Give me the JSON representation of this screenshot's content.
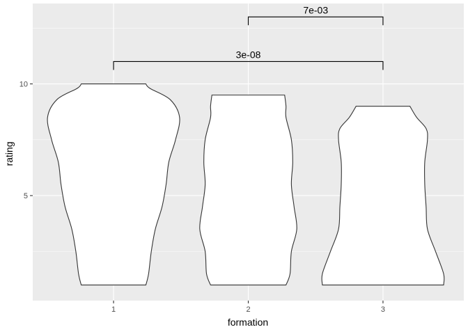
{
  "chart_data": {
    "type": "violin",
    "xlabel": "formation",
    "ylabel": "rating",
    "categories": [
      "1",
      "2",
      "3"
    ],
    "ylim": [
      0.3,
      13.6
    ],
    "y_ticks": [
      5,
      10
    ],
    "y_tick_labels": [
      "5",
      "10"
    ],
    "grid": true,
    "legend": "none",
    "violins": [
      {
        "category": "1",
        "profile": [
          [
            1.0,
            0.24
          ],
          [
            1.5,
            0.26
          ],
          [
            2.5,
            0.28
          ],
          [
            3.5,
            0.31
          ],
          [
            4.5,
            0.36
          ],
          [
            5.5,
            0.39
          ],
          [
            6.5,
            0.41
          ],
          [
            7.5,
            0.46
          ],
          [
            8.5,
            0.49
          ],
          [
            9.3,
            0.42
          ],
          [
            9.8,
            0.27
          ],
          [
            10.0,
            0.24
          ]
        ]
      },
      {
        "category": "2",
        "profile": [
          [
            1.0,
            0.28
          ],
          [
            1.5,
            0.31
          ],
          [
            2.5,
            0.32
          ],
          [
            3.5,
            0.36
          ],
          [
            4.5,
            0.34
          ],
          [
            5.5,
            0.32
          ],
          [
            6.5,
            0.33
          ],
          [
            7.5,
            0.32
          ],
          [
            8.5,
            0.28
          ],
          [
            9.0,
            0.28
          ],
          [
            9.5,
            0.27
          ]
        ]
      },
      {
        "category": "3",
        "profile": [
          [
            1.0,
            0.45
          ],
          [
            1.5,
            0.45
          ],
          [
            2.5,
            0.39
          ],
          [
            3.5,
            0.33
          ],
          [
            4.5,
            0.32
          ],
          [
            5.5,
            0.31
          ],
          [
            6.5,
            0.31
          ],
          [
            7.5,
            0.33
          ],
          [
            8.0,
            0.32
          ],
          [
            8.5,
            0.25
          ],
          [
            9.0,
            0.2
          ]
        ]
      }
    ],
    "comparisons": [
      {
        "from": "1",
        "to": "3",
        "y": 11.0,
        "label": "3e-08"
      },
      {
        "from": "2",
        "to": "3",
        "y": 13.0,
        "label": "7e-03"
      }
    ],
    "colors": {
      "panel": "#ebebeb",
      "grid_major": "#ffffff",
      "violin_fill": "#ffffff",
      "violin_stroke": "#333333",
      "bracket": "#000000"
    }
  }
}
